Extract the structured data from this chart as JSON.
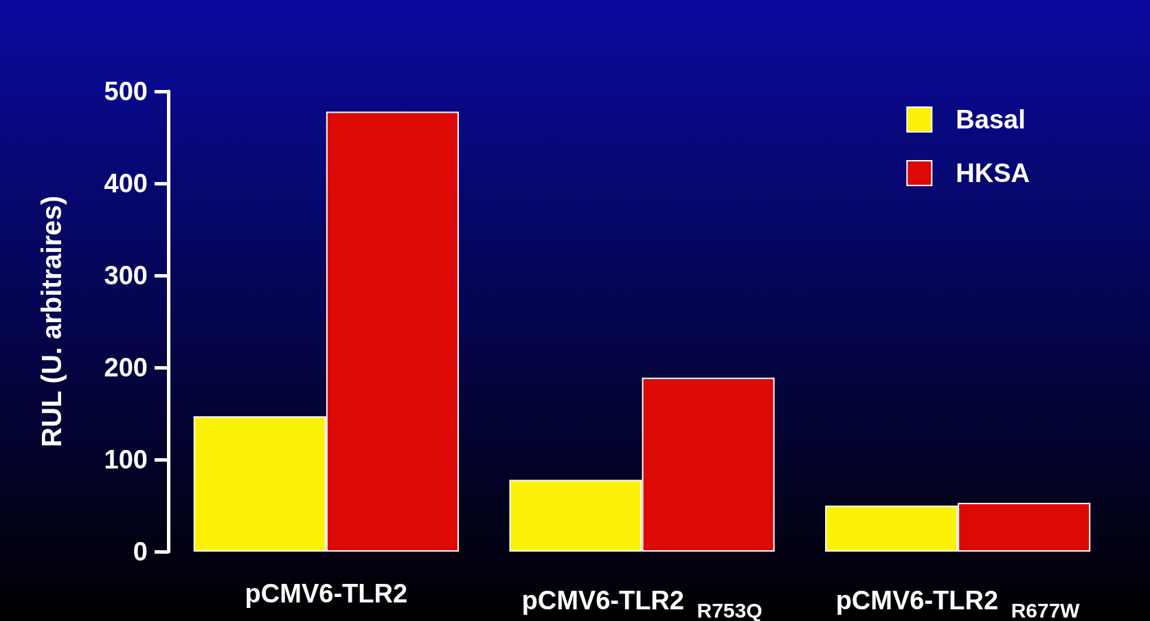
{
  "chart_data": {
    "type": "bar",
    "ylabel": "RUL (U. arbitraires)",
    "categories": [
      "pCMV6-TLR2",
      "pCMV6-TLR2 $_{R753Q}$",
      "pCMV6-TLR2 $_{R677W}$"
    ],
    "series": [
      {
        "name": "Basal",
        "color": "#fcf207",
        "values": [
          147,
          78,
          50
        ]
      },
      {
        "name": "HKSA",
        "color": "#dc0905",
        "values": [
          478,
          189,
          53
        ]
      }
    ],
    "ylim": [
      0,
      500
    ],
    "yticks": [
      0,
      100,
      200,
      300,
      400,
      500
    ],
    "grid": false,
    "legend": "top right"
  }
}
